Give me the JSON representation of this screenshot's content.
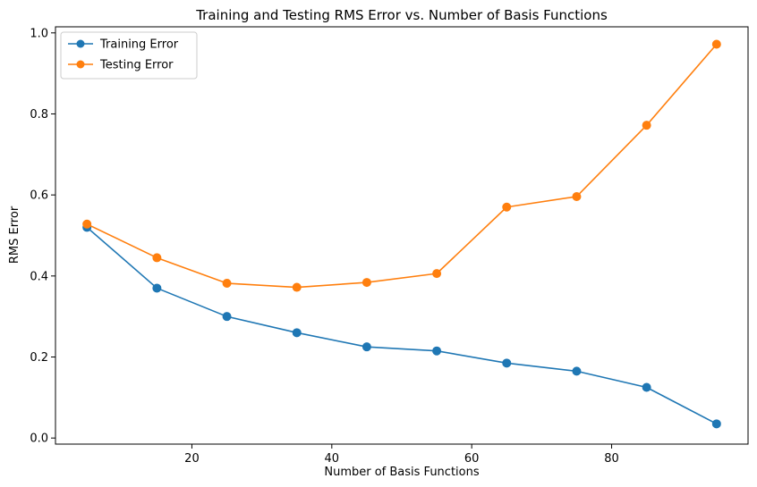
{
  "chart_data": {
    "type": "line",
    "title": "Training and Testing RMS Error vs. Number of Basis Functions",
    "xlabel": "Number of Basis Functions",
    "ylabel": "RMS Error",
    "x": [
      5,
      15,
      25,
      35,
      45,
      55,
      65,
      75,
      85,
      95
    ],
    "xlim": [
      0.5,
      99.5
    ],
    "ylim": [
      -0.015,
      1.015
    ],
    "xticks": [
      20,
      40,
      60,
      80
    ],
    "yticks": [
      0.0,
      0.2,
      0.4,
      0.6,
      0.8,
      1.0
    ],
    "xtick_labels": [
      "20",
      "40",
      "60",
      "80"
    ],
    "ytick_labels": [
      "0.0",
      "0.2",
      "0.4",
      "0.6",
      "0.8",
      "1.0"
    ],
    "grid": false,
    "legend_position": "top-left",
    "series": [
      {
        "name": "Training Error",
        "color": "#1f77b4",
        "marker": "circle",
        "values": [
          0.52,
          0.37,
          0.3,
          0.26,
          0.225,
          0.215,
          0.185,
          0.165,
          0.125,
          0.035
        ]
      },
      {
        "name": "Testing Error",
        "color": "#ff7f0e",
        "marker": "circle",
        "values": [
          0.528,
          0.445,
          0.382,
          0.372,
          0.384,
          0.406,
          0.57,
          0.596,
          0.772,
          0.972
        ]
      }
    ]
  }
}
